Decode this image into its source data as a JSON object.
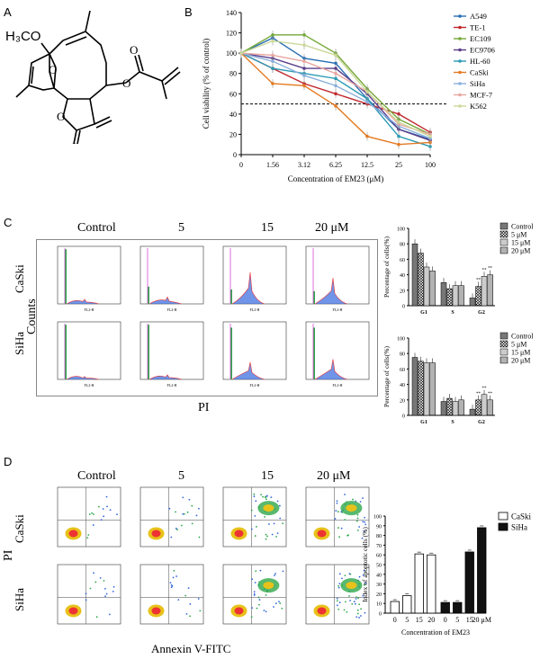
{
  "panels": {
    "a": "A",
    "b": "B",
    "c": "C",
    "d": "D"
  },
  "structure": {
    "h3co": "H₃CO"
  },
  "viability": {
    "ylabel": "Cell viability (% of control)",
    "xlabel": "Concentration of EM23 (μM)",
    "x_ticks": [
      "0",
      "1.56",
      "3.12",
      "6.25",
      "12.5",
      "25",
      "100"
    ],
    "y_ticks": [
      "0",
      "20",
      "40",
      "60",
      "80",
      "100",
      "120",
      "140"
    ],
    "legend": [
      "A549",
      "TE-1",
      "EC109",
      "EC9706",
      "HL-60",
      "CaSki",
      "SiHa",
      "MCF-7",
      "K562"
    ]
  },
  "cycle": {
    "conditions": [
      "Control",
      "5",
      "15",
      "20 μM"
    ],
    "cells": [
      "CaSki",
      "SiHa"
    ],
    "y_axis": "Counts",
    "x_axis": "PI",
    "bar_ylabel": "Percentage of cells(%)",
    "bar_legend": [
      "Control",
      "5 μM",
      "15 μM",
      "20 μM"
    ],
    "phases": [
      "G1",
      "S",
      "G2"
    ],
    "sig": "**"
  },
  "apoptosis": {
    "conditions": [
      "Control",
      "5",
      "15",
      "20 μM"
    ],
    "cells": [
      "CaSki",
      "SiHa"
    ],
    "y_axis": "PI",
    "x_axis": "Annexin V-FITC",
    "bar_ylabel": "Index of apoptotic cells (%)",
    "bar_xlabel": "Concentration of EM23",
    "bar_ticks": [
      "0",
      "5",
      "15",
      "20",
      "0",
      "5",
      "15",
      "20 μM"
    ],
    "y_ticks": [
      "0",
      "10",
      "20",
      "30",
      "40",
      "50",
      "60",
      "70",
      "80",
      "90",
      "100"
    ],
    "legend": [
      "CaSki",
      "SiHa"
    ]
  },
  "chart_data": [
    {
      "type": "line",
      "title": "",
      "xlabel": "Concentration of EM23 (μM)",
      "ylabel": "Cell viability (% of control)",
      "categories": [
        "0",
        "1.56",
        "3.12",
        "6.25",
        "12.5",
        "25",
        "100"
      ],
      "ylim": [
        0,
        140
      ],
      "threshold": 50,
      "series": [
        {
          "name": "A549",
          "color": "#2a6eb5",
          "values": [
            100,
            115,
            95,
            90,
            55,
            25,
            15
          ]
        },
        {
          "name": "TE-1",
          "color": "#c0262d",
          "values": [
            100,
            85,
            70,
            60,
            50,
            40,
            22
          ]
        },
        {
          "name": "EC109",
          "color": "#76a83a",
          "values": [
            100,
            118,
            118,
            100,
            65,
            35,
            20
          ]
        },
        {
          "name": "EC9706",
          "color": "#5a3d8a",
          "values": [
            100,
            95,
            85,
            85,
            60,
            25,
            14
          ]
        },
        {
          "name": "HL-60",
          "color": "#2a9ab4",
          "values": [
            100,
            85,
            80,
            75,
            55,
            18,
            8
          ]
        },
        {
          "name": "CaSki",
          "color": "#e47a22",
          "values": [
            100,
            70,
            68,
            48,
            18,
            10,
            12
          ]
        },
        {
          "name": "SiHa",
          "color": "#8ab0dc",
          "values": [
            100,
            92,
            78,
            68,
            52,
            28,
            16
          ]
        },
        {
          "name": "MCF-7",
          "color": "#e8a6a0",
          "values": [
            100,
            98,
            92,
            80,
            62,
            30,
            20
          ]
        },
        {
          "name": "K562",
          "color": "#cbd89a",
          "values": [
            100,
            112,
            108,
            98,
            62,
            32,
            18
          ]
        }
      ]
    },
    {
      "type": "bar",
      "title": "",
      "ylabel": "Percentage of cells(%)",
      "categories": [
        "G1",
        "S",
        "G2"
      ],
      "cell": "CaSki",
      "ylim": [
        0,
        100
      ],
      "series": [
        {
          "name": "Control",
          "values": [
            80,
            30,
            10
          ]
        },
        {
          "name": "5 μM",
          "values": [
            68,
            22,
            25
          ]
        },
        {
          "name": "15 μM",
          "values": [
            50,
            26,
            38
          ]
        },
        {
          "name": "20 μM",
          "values": [
            45,
            26,
            40
          ]
        }
      ]
    },
    {
      "type": "bar",
      "title": "",
      "ylabel": "Percentage of cells(%)",
      "categories": [
        "G1",
        "S",
        "G2"
      ],
      "cell": "SiHa",
      "ylim": [
        0,
        100
      ],
      "series": [
        {
          "name": "Control",
          "values": [
            75,
            18,
            8
          ]
        },
        {
          "name": "5 μM",
          "values": [
            70,
            22,
            20
          ]
        },
        {
          "name": "15 μM",
          "values": [
            68,
            18,
            27
          ]
        },
        {
          "name": "20 μM",
          "values": [
            68,
            20,
            20
          ]
        }
      ]
    },
    {
      "type": "bar",
      "title": "",
      "xlabel": "Concentration of EM23",
      "ylabel": "Index of apoptotic cells (%)",
      "ylim": [
        0,
        100
      ],
      "groups": [
        {
          "name": "CaSki",
          "categories": [
            "0",
            "5",
            "15",
            "20"
          ],
          "values": [
            12,
            18,
            61,
            60
          ]
        },
        {
          "name": "SiHa",
          "categories": [
            "0",
            "5",
            "15",
            "20"
          ],
          "values": [
            11,
            11,
            63,
            88
          ]
        }
      ]
    }
  ]
}
